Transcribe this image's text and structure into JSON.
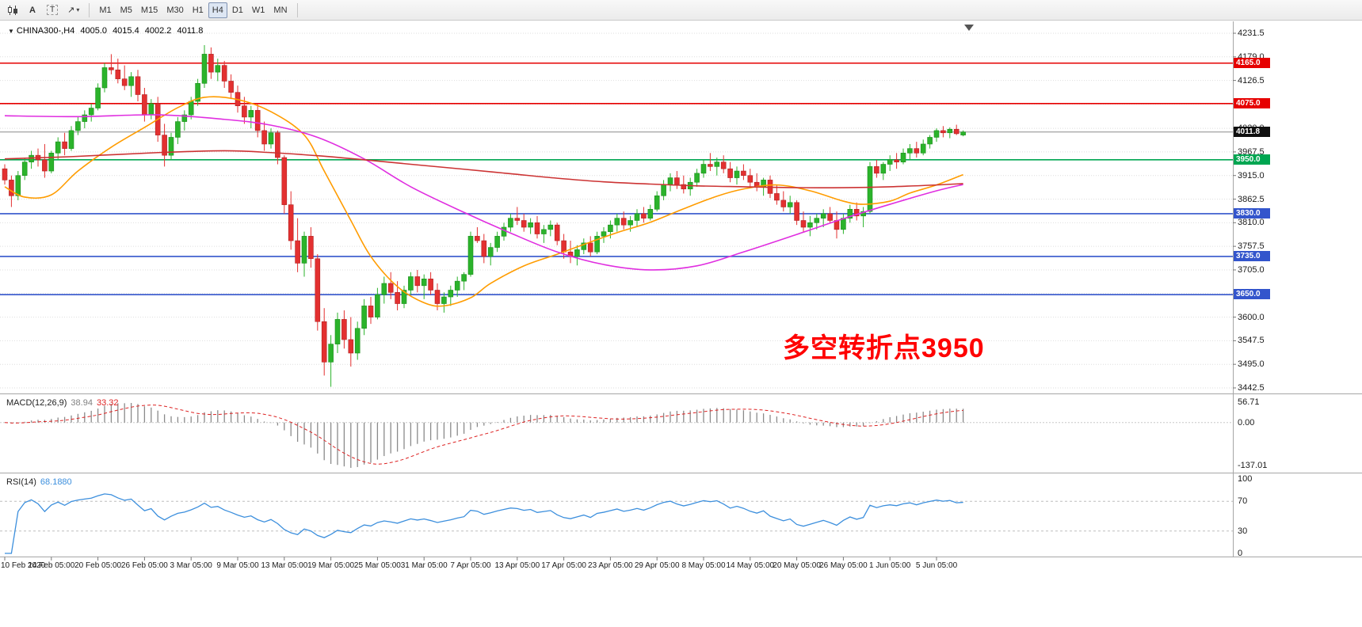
{
  "toolbar": {
    "font_tool": "A",
    "text_tool": "T",
    "line_tool_glyph": "↗",
    "caret": "▾",
    "timeframes": [
      "M1",
      "M5",
      "M15",
      "M30",
      "H1",
      "H4",
      "D1",
      "W1",
      "MN"
    ],
    "active_timeframe": "H4"
  },
  "chart": {
    "marker": "▼",
    "symbol_title": "CHINA300-,H4",
    "open": "4005.0",
    "high": "4015.4",
    "low": "4002.2",
    "close": "4011.8"
  },
  "price_axis": {
    "tags": [
      {
        "text": "4165.0",
        "price": 4165.0,
        "color": "#e60000"
      },
      {
        "text": "4075.0",
        "price": 4075.0,
        "color": "#e60000"
      },
      {
        "text": "4011.8",
        "price": 4011.8,
        "color": "#101010"
      },
      {
        "text": "3950.0",
        "price": 3950.0,
        "color": "#00a651"
      },
      {
        "text": "3830.0",
        "price": 3830.0,
        "color": "#3355cc"
      },
      {
        "text": "3735.0",
        "price": 3735.0,
        "color": "#3355cc"
      },
      {
        "text": "3650.0",
        "price": 3650.0,
        "color": "#3355cc"
      }
    ]
  },
  "chart_data": {
    "type": "candlestick",
    "symbol": "CHINA300-",
    "timeframe": "H4",
    "title": "CHINA300-,H4 4005.0 4015.4 4002.2 4011.8",
    "y_range": [
      3442.5,
      4231.5
    ],
    "y_ticks": [
      4231.5,
      4179.0,
      4126.5,
      4074.0,
      4020.0,
      3967.5,
      3915.0,
      3862.5,
      3810.0,
      3757.5,
      3705.0,
      3652.5,
      3600.0,
      3547.5,
      3495.0,
      3442.5
    ],
    "levels": [
      {
        "name": "resistance-4165",
        "price": 4165.0,
        "color": "#e60000",
        "width": 1.6
      },
      {
        "name": "resistance-4075",
        "price": 4075.0,
        "color": "#e60000",
        "width": 1.6
      },
      {
        "name": "last-price-4011-8",
        "price": 4011.8,
        "color": "#8a8a8a",
        "width": 1
      },
      {
        "name": "pivot-3950",
        "price": 3950.0,
        "color": "#00a651",
        "width": 1.6
      },
      {
        "name": "support-3830",
        "price": 3830.0,
        "color": "#3355cc",
        "width": 1.6
      },
      {
        "name": "support-3735",
        "price": 3735.0,
        "color": "#3355cc",
        "width": 1.6
      },
      {
        "name": "support-3650",
        "price": 3650.0,
        "color": "#3355cc",
        "width": 1.6
      }
    ],
    "moving_averages": [
      {
        "name": "fast-orange",
        "color": "#ff9c00",
        "points": [
          [
            0,
            3890
          ],
          [
            3,
            3867
          ],
          [
            7,
            3872
          ],
          [
            11,
            3925
          ],
          [
            16,
            3978
          ],
          [
            21,
            4022
          ],
          [
            26,
            4066
          ],
          [
            30,
            4089
          ],
          [
            35,
            4084
          ],
          [
            40,
            4057
          ],
          [
            45,
            4005
          ],
          [
            48,
            3925
          ],
          [
            52,
            3815
          ],
          [
            55,
            3735
          ],
          [
            59,
            3668
          ],
          [
            63,
            3632
          ],
          [
            66,
            3625
          ],
          [
            70,
            3643
          ],
          [
            73,
            3675
          ],
          [
            78,
            3714
          ],
          [
            83,
            3740
          ],
          [
            88,
            3767
          ],
          [
            92,
            3788
          ],
          [
            97,
            3811
          ],
          [
            102,
            3841
          ],
          [
            107,
            3869
          ],
          [
            111,
            3885
          ],
          [
            116,
            3894
          ],
          [
            121,
            3881
          ],
          [
            126,
            3858
          ],
          [
            129,
            3851
          ],
          [
            133,
            3858
          ],
          [
            136,
            3876
          ],
          [
            140,
            3894
          ],
          [
            144,
            3917
          ]
        ]
      },
      {
        "name": "mid-magenta",
        "color": "#e02ee0",
        "points": [
          [
            0,
            4048
          ],
          [
            11,
            4046
          ],
          [
            23,
            4050
          ],
          [
            33,
            4040
          ],
          [
            40,
            4027
          ],
          [
            47,
            4000
          ],
          [
            54,
            3952
          ],
          [
            61,
            3890
          ],
          [
            69,
            3833
          ],
          [
            76,
            3787
          ],
          [
            83,
            3745
          ],
          [
            90,
            3717
          ],
          [
            97,
            3705
          ],
          [
            104,
            3714
          ],
          [
            111,
            3745
          ],
          [
            119,
            3784
          ],
          [
            126,
            3819
          ],
          [
            133,
            3851
          ],
          [
            140,
            3881
          ],
          [
            144,
            3895
          ]
        ]
      },
      {
        "name": "slow-red",
        "color": "#cc3333",
        "points": [
          [
            0,
            3952
          ],
          [
            10,
            3957
          ],
          [
            23,
            3966
          ],
          [
            33,
            3970
          ],
          [
            40,
            3966
          ],
          [
            47,
            3959
          ],
          [
            54,
            3950
          ],
          [
            61,
            3940
          ],
          [
            69,
            3929
          ],
          [
            76,
            3919
          ],
          [
            83,
            3909
          ],
          [
            90,
            3901
          ],
          [
            97,
            3896
          ],
          [
            104,
            3892
          ],
          [
            111,
            3890
          ],
          [
            119,
            3888
          ],
          [
            126,
            3888
          ],
          [
            133,
            3890
          ],
          [
            140,
            3894
          ],
          [
            144,
            3897
          ]
        ]
      }
    ],
    "candles": [
      [
        3930,
        3940,
        3895,
        3905
      ],
      [
        3905,
        3915,
        3845,
        3870
      ],
      [
        3870,
        3925,
        3860,
        3915
      ],
      [
        3915,
        3955,
        3905,
        3945
      ],
      [
        3945,
        3970,
        3930,
        3960
      ],
      [
        3960,
        3975,
        3935,
        3950
      ],
      [
        3950,
        3985,
        3910,
        3925
      ],
      [
        3925,
        3970,
        3920,
        3965
      ],
      [
        3965,
        4000,
        3950,
        3990
      ],
      [
        3990,
        4010,
        3960,
        3975
      ],
      [
        3975,
        4025,
        3970,
        4015
      ],
      [
        4015,
        4045,
        4005,
        4035
      ],
      [
        4035,
        4060,
        4020,
        4050
      ],
      [
        4050,
        4075,
        4035,
        4065
      ],
      [
        4065,
        4120,
        4060,
        4110
      ],
      [
        4110,
        4165,
        4100,
        4155
      ],
      [
        4155,
        4185,
        4140,
        4150
      ],
      [
        4150,
        4175,
        4120,
        4130
      ],
      [
        4130,
        4160,
        4105,
        4115
      ],
      [
        4115,
        4145,
        4090,
        4135
      ],
      [
        4135,
        4150,
        4080,
        4095
      ],
      [
        4095,
        4110,
        4035,
        4050
      ],
      [
        4050,
        4085,
        4040,
        4075
      ],
      [
        4075,
        4090,
        3990,
        4005
      ],
      [
        4005,
        4030,
        3935,
        3960
      ],
      [
        3960,
        4010,
        3950,
        4000
      ],
      [
        4000,
        4045,
        3985,
        4035
      ],
      [
        4035,
        4060,
        4015,
        4050
      ],
      [
        4050,
        4090,
        4040,
        4080
      ],
      [
        4080,
        4130,
        4070,
        4120
      ],
      [
        4120,
        4205,
        4110,
        4185
      ],
      [
        4185,
        4200,
        4130,
        4145
      ],
      [
        4145,
        4175,
        4125,
        4160
      ],
      [
        4160,
        4170,
        4110,
        4125
      ],
      [
        4125,
        4140,
        4085,
        4100
      ],
      [
        4100,
        4115,
        4055,
        4070
      ],
      [
        4070,
        4090,
        4030,
        4045
      ],
      [
        4045,
        4070,
        4020,
        4060
      ],
      [
        4060,
        4075,
        4000,
        4015
      ],
      [
        4015,
        4035,
        3970,
        3985
      ],
      [
        3985,
        4020,
        3975,
        4010
      ],
      [
        4010,
        4015,
        3940,
        3955
      ],
      [
        3955,
        3960,
        3830,
        3850
      ],
      [
        3850,
        3880,
        3750,
        3770
      ],
      [
        3770,
        3820,
        3700,
        3720
      ],
      [
        3720,
        3790,
        3690,
        3780
      ],
      [
        3780,
        3800,
        3710,
        3730
      ],
      [
        3730,
        3740,
        3570,
        3590
      ],
      [
        3590,
        3620,
        3470,
        3500
      ],
      [
        3500,
        3560,
        3445,
        3540
      ],
      [
        3540,
        3610,
        3520,
        3595
      ],
      [
        3595,
        3615,
        3530,
        3550
      ],
      [
        3550,
        3600,
        3490,
        3520
      ],
      [
        3520,
        3590,
        3505,
        3575
      ],
      [
        3575,
        3640,
        3560,
        3625
      ],
      [
        3625,
        3645,
        3585,
        3600
      ],
      [
        3600,
        3665,
        3595,
        3650
      ],
      [
        3650,
        3690,
        3630,
        3675
      ],
      [
        3675,
        3700,
        3640,
        3655
      ],
      [
        3655,
        3680,
        3615,
        3630
      ],
      [
        3630,
        3670,
        3620,
        3660
      ],
      [
        3660,
        3700,
        3650,
        3690
      ],
      [
        3690,
        3705,
        3655,
        3670
      ],
      [
        3670,
        3695,
        3640,
        3685
      ],
      [
        3685,
        3700,
        3650,
        3660
      ],
      [
        3660,
        3675,
        3615,
        3630
      ],
      [
        3630,
        3655,
        3610,
        3645
      ],
      [
        3645,
        3670,
        3625,
        3660
      ],
      [
        3660,
        3690,
        3645,
        3680
      ],
      [
        3680,
        3700,
        3660,
        3695
      ],
      [
        3695,
        3790,
        3690,
        3780
      ],
      [
        3780,
        3800,
        3765,
        3770
      ],
      [
        3770,
        3785,
        3720,
        3735
      ],
      [
        3735,
        3765,
        3715,
        3755
      ],
      [
        3755,
        3790,
        3745,
        3780
      ],
      [
        3780,
        3810,
        3770,
        3800
      ],
      [
        3800,
        3830,
        3790,
        3820
      ],
      [
        3820,
        3845,
        3805,
        3815
      ],
      [
        3815,
        3830,
        3790,
        3800
      ],
      [
        3800,
        3820,
        3785,
        3810
      ],
      [
        3810,
        3825,
        3775,
        3785
      ],
      [
        3785,
        3805,
        3765,
        3795
      ],
      [
        3795,
        3815,
        3780,
        3805
      ],
      [
        3805,
        3810,
        3760,
        3770
      ],
      [
        3770,
        3785,
        3730,
        3745
      ],
      [
        3745,
        3770,
        3720,
        3735
      ],
      [
        3735,
        3760,
        3715,
        3750
      ],
      [
        3750,
        3775,
        3740,
        3765
      ],
      [
        3765,
        3780,
        3735,
        3745
      ],
      [
        3745,
        3790,
        3740,
        3780
      ],
      [
        3780,
        3800,
        3765,
        3790
      ],
      [
        3790,
        3815,
        3775,
        3805
      ],
      [
        3805,
        3830,
        3790,
        3820
      ],
      [
        3820,
        3835,
        3795,
        3805
      ],
      [
        3805,
        3825,
        3790,
        3815
      ],
      [
        3815,
        3840,
        3800,
        3830
      ],
      [
        3830,
        3845,
        3810,
        3820
      ],
      [
        3820,
        3850,
        3815,
        3840
      ],
      [
        3840,
        3880,
        3835,
        3870
      ],
      [
        3870,
        3905,
        3860,
        3895
      ],
      [
        3895,
        3920,
        3880,
        3910
      ],
      [
        3910,
        3925,
        3885,
        3895
      ],
      [
        3895,
        3915,
        3875,
        3885
      ],
      [
        3885,
        3910,
        3870,
        3900
      ],
      [
        3900,
        3930,
        3890,
        3920
      ],
      [
        3920,
        3950,
        3910,
        3940
      ],
      [
        3940,
        3965,
        3925,
        3935
      ],
      [
        3935,
        3955,
        3915,
        3945
      ],
      [
        3945,
        3960,
        3920,
        3930
      ],
      [
        3930,
        3945,
        3900,
        3910
      ],
      [
        3910,
        3935,
        3895,
        3925
      ],
      [
        3925,
        3940,
        3905,
        3915
      ],
      [
        3915,
        3930,
        3890,
        3900
      ],
      [
        3900,
        3920,
        3880,
        3890
      ],
      [
        3890,
        3910,
        3870,
        3905
      ],
      [
        3905,
        3915,
        3865,
        3875
      ],
      [
        3875,
        3895,
        3850,
        3860
      ],
      [
        3860,
        3880,
        3835,
        3845
      ],
      [
        3845,
        3870,
        3830,
        3855
      ],
      [
        3855,
        3860,
        3805,
        3815
      ],
      [
        3815,
        3835,
        3790,
        3800
      ],
      [
        3800,
        3825,
        3780,
        3810
      ],
      [
        3810,
        3830,
        3795,
        3820
      ],
      [
        3820,
        3840,
        3800,
        3830
      ],
      [
        3830,
        3845,
        3810,
        3815
      ],
      [
        3815,
        3835,
        3775,
        3795
      ],
      [
        3795,
        3830,
        3785,
        3820
      ],
      [
        3820,
        3850,
        3810,
        3840
      ],
      [
        3840,
        3855,
        3815,
        3825
      ],
      [
        3825,
        3845,
        3800,
        3835
      ],
      [
        3835,
        3945,
        3830,
        3935
      ],
      [
        3935,
        3950,
        3910,
        3920
      ],
      [
        3920,
        3945,
        3905,
        3940
      ],
      [
        3940,
        3960,
        3925,
        3950
      ],
      [
        3950,
        3965,
        3930,
        3945
      ],
      [
        3945,
        3975,
        3940,
        3965
      ],
      [
        3965,
        3985,
        3950,
        3975
      ],
      [
        3975,
        3990,
        3955,
        3965
      ],
      [
        3965,
        3995,
        3960,
        3985
      ],
      [
        3985,
        4005,
        3975,
        4000
      ],
      [
        4000,
        4020,
        3990,
        4015
      ],
      [
        4015,
        4025,
        4000,
        4010
      ],
      [
        4010,
        4022,
        3998,
        4018
      ],
      [
        4018,
        4028,
        4005,
        4008
      ],
      [
        4005,
        4015.4,
        4002.2,
        4011.8
      ]
    ],
    "x_labels": [
      [
        0,
        "10 Feb 2020"
      ],
      [
        7,
        "14 Feb 05:00"
      ],
      [
        14,
        "20 Feb 05:00"
      ],
      [
        21,
        "26 Feb 05:00"
      ],
      [
        28,
        "3 Mar 05:00"
      ],
      [
        35,
        "9 Mar 05:00"
      ],
      [
        42,
        "13 Mar 05:00"
      ],
      [
        49,
        "19 Mar 05:00"
      ],
      [
        56,
        "25 Mar 05:00"
      ],
      [
        63,
        "31 Mar 05:00"
      ],
      [
        70,
        "7 Apr 05:00"
      ],
      [
        77,
        "13 Apr 05:00"
      ],
      [
        84,
        "17 Apr 05:00"
      ],
      [
        91,
        "23 Apr 05:00"
      ],
      [
        98,
        "29 Apr 05:00"
      ],
      [
        105,
        "8 May 05:00"
      ],
      [
        112,
        "14 May 05:00"
      ],
      [
        119,
        "20 May 05:00"
      ],
      [
        126,
        "26 May 05:00"
      ],
      [
        133,
        "1 Jun 05:00"
      ],
      [
        140,
        "5 Jun 05:00"
      ]
    ],
    "annotation": {
      "text": "多空转折点3950",
      "color": "#ff0000"
    }
  },
  "macd": {
    "label": "MACD(12,26,9)",
    "main_value": "38.94",
    "signal_value": "33.32",
    "axis_max": "56.71",
    "axis_zero": "0.00",
    "axis_min": "-137.01",
    "fast": 12,
    "slow": 26,
    "smoothing": 9
  },
  "rsi": {
    "label": "RSI(14)",
    "value": "68.1880",
    "period": 14,
    "axis": [
      "100",
      "70",
      "30",
      "0"
    ],
    "levels": [
      70,
      30
    ]
  },
  "colors": {
    "bull": "#2bb32b",
    "bear": "#e33030",
    "bull_border": "#1d8f1d",
    "bear_border": "#b02424",
    "grid": "#dedede",
    "macd_hist": "#8a8a8a",
    "macd_signal": "#dd2222",
    "rsi_line": "#3c8fdd",
    "annotation": "#ff0000"
  }
}
